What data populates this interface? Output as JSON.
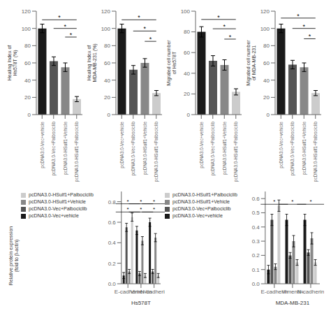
{
  "chart_data": [
    {
      "type": "bar",
      "categories": [
        "pcDNA3.0-Vec+vehicle",
        "pcDNA3.0-Vec+Palbociclib",
        "pcDNA3.0-HSulf1+Vehicle",
        "pcDNA3.0-HSulf1+Palbociclib"
      ],
      "values": [
        100,
        62,
        55,
        18
      ],
      "errors": [
        5,
        5,
        5,
        3
      ],
      "colors": [
        "#1a1a1a",
        "#555555",
        "#888888",
        "#cccccc"
      ],
      "ylabel": "Healing Index of\nHs578T (%)",
      "ylim": [
        0,
        120
      ],
      "yticks": [
        0,
        20,
        40,
        60,
        80,
        100,
        120
      ],
      "grid": false,
      "annotations": [
        {
          "text": "*",
          "from": "pcDNA3.0-Vec+vehicle",
          "to": "pcDNA3.0-HSulf1+Palbociclib",
          "y": 110
        },
        {
          "text": "*",
          "from": "pcDNA3.0-Vec+Palbociclib",
          "to": "pcDNA3.0-HSulf1+Palbociclib",
          "y": 100
        },
        {
          "text": "*",
          "from": "pcDNA3.0-HSulf1+Vehicle",
          "to": "pcDNA3.0-HSulf1+Palbociclib",
          "y": 90
        }
      ]
    },
    {
      "type": "bar",
      "categories": [
        "pcDNA3.0-Vec+vehicle",
        "pcDNA3.0-Vec+Palbociclib",
        "pcDNA3.0-HSulf1+Vehicle",
        "pcDNA3.0-HSulf1+Palbociclib"
      ],
      "values": [
        100,
        52,
        60,
        25
      ],
      "errors": [
        5,
        5,
        5,
        3
      ],
      "colors": [
        "#1a1a1a",
        "#555555",
        "#888888",
        "#cccccc"
      ],
      "ylabel": "Healing Index of\nMDA-MB-231 (%)",
      "ylim": [
        0,
        120
      ],
      "yticks": [
        0,
        20,
        40,
        60,
        80,
        100,
        120
      ],
      "grid": false,
      "annotations": [
        {
          "text": "*",
          "from": "pcDNA3.0-Vec+vehicle",
          "to": "pcDNA3.0-HSulf1+Palbociclib",
          "y": 110
        },
        {
          "text": "*",
          "from": "pcDNA3.0-Vec+Palbociclib",
          "to": "pcDNA3.0-HSulf1+Palbociclib",
          "y": 97
        },
        {
          "text": "*",
          "from": "pcDNA3.0-HSulf1+Vehicle",
          "to": "pcDNA3.0-HSulf1+Palbociclib",
          "y": 85
        }
      ]
    },
    {
      "type": "bar",
      "categories": [
        "pcDNA3.0-Vec+vehicle",
        "pcDNA3.0-Vec+Palbociclib",
        "pcDNA3.0-HSulf1+Vehicle",
        "pcDNA3.0-HSulf1+Palbociclib"
      ],
      "values": [
        80,
        52,
        48,
        22
      ],
      "errors": [
        5,
        5,
        5,
        3
      ],
      "colors": [
        "#1a1a1a",
        "#555555",
        "#888888",
        "#cccccc"
      ],
      "ylabel": "Migrated cell number\nof Hs578T",
      "ylim": [
        0,
        100
      ],
      "yticks": [
        0,
        20,
        40,
        60,
        80,
        100
      ],
      "grid": false,
      "annotations": [
        {
          "text": "*",
          "from": "pcDNA3.0-Vec+vehicle",
          "to": "pcDNA3.0-HSulf1+Palbociclib",
          "y": 92
        },
        {
          "text": "*",
          "from": "pcDNA3.0-Vec+Palbociclib",
          "to": "pcDNA3.0-HSulf1+Palbociclib",
          "y": 83
        },
        {
          "text": "*",
          "from": "pcDNA3.0-HSulf1+Vehicle",
          "to": "pcDNA3.0-HSulf1+Palbociclib",
          "y": 73
        }
      ]
    },
    {
      "type": "bar",
      "categories": [
        "pcDNA3.0-Vec+vehicle",
        "pcDNA3.0-Vec+Palbociclib",
        "pcDNA3.0-HSulf1+Vehicle",
        "pcDNA3.0-HSulf1+Palbociclib"
      ],
      "values": [
        100,
        58,
        55,
        25
      ],
      "errors": [
        5,
        5,
        5,
        3
      ],
      "colors": [
        "#1a1a1a",
        "#555555",
        "#888888",
        "#cccccc"
      ],
      "ylabel": "Migrated cell number\nof MDA-MB-231",
      "ylim": [
        0,
        120
      ],
      "yticks": [
        0,
        20,
        40,
        60,
        80,
        100,
        120
      ],
      "grid": false,
      "annotations": [
        {
          "text": "*",
          "from": "pcDNA3.0-Vec+vehicle",
          "to": "pcDNA3.0-HSulf1+Palbociclib",
          "y": 112
        },
        {
          "text": "*",
          "from": "pcDNA3.0-Vec+Palbociclib",
          "to": "pcDNA3.0-HSulf1+Palbociclib",
          "y": 100
        },
        {
          "text": "*",
          "from": "pcDNA3.0-HSulf1+Vehicle",
          "to": "pcDNA3.0-HSulf1+Palbociclib",
          "y": 88
        }
      ]
    },
    {
      "type": "bar",
      "categories": [
        "E-cadherin",
        "Vimentin",
        "N-cadherin"
      ],
      "series": [
        {
          "name": "pcDNA3.0-Vec+vehicle",
          "color": "#1a1a1a",
          "values": [
            0.08,
            0.52,
            0.6
          ],
          "errors": [
            0.03,
            0.04,
            0.04
          ]
        },
        {
          "name": "pcDNA3.0-Vec+Palbociclib",
          "color": "#555555",
          "values": [
            0.55,
            0.1,
            0.12
          ],
          "errors": [
            0.04,
            0.02,
            0.02
          ]
        },
        {
          "name": "pcDNA3.0-HSulf1+Vehicle",
          "color": "#888888",
          "values": [
            0.12,
            0.42,
            0.45
          ],
          "errors": [
            0.02,
            0.04,
            0.04
          ]
        },
        {
          "name": "pcDNA3.0-HSulf1+Palbociclib",
          "color": "#cccccc",
          "values": [
            0.65,
            0.08,
            0.08
          ],
          "errors": [
            0.04,
            0.02,
            0.02
          ]
        }
      ],
      "ylabel": "Relative protein expression\n(fold to β-actin)",
      "xlabel": "Hs578T",
      "ylim": [
        0,
        0.9
      ],
      "yticks": [
        {
          "value": 0,
          "label": "0.0"
        },
        0.2,
        0.4,
        0.6,
        0.8
      ],
      "grid": false,
      "legend": "upper left",
      "annotations": [
        {
          "text": "*",
          "category": "E-cadherin",
          "y": 0.78
        },
        {
          "text": "*",
          "category": "E-cadherin",
          "y": 0.7
        },
        {
          "text": "*",
          "category": "Vimentin",
          "y": 0.78
        },
        {
          "text": "*",
          "category": "Vimentin",
          "y": 0.7
        },
        {
          "text": "*",
          "category": "N-cadherin",
          "y": 0.78
        },
        {
          "text": "*",
          "category": "N-cadherin",
          "y": 0.7
        }
      ]
    },
    {
      "type": "bar",
      "categories": [
        "E-cadherin",
        "Vimentin",
        "N-cadherin"
      ],
      "series": [
        {
          "name": "pcDNA3.0-Vec+vehicle",
          "color": "#1a1a1a",
          "values": [
            0.1,
            0.45,
            0.45
          ],
          "errors": [
            0.03,
            0.04,
            0.04
          ]
        },
        {
          "name": "pcDNA3.0-Vec+Palbociclib",
          "color": "#555555",
          "values": [
            0.45,
            0.2,
            0.22
          ],
          "errors": [
            0.04,
            0.02,
            0.02
          ]
        },
        {
          "name": "pcDNA3.0-HSulf1+Vehicle",
          "color": "#888888",
          "values": [
            0.12,
            0.3,
            0.32
          ],
          "errors": [
            0.02,
            0.04,
            0.04
          ]
        },
        {
          "name": "pcDNA3.0-HSulf1+Palbociclib",
          "color": "#cccccc",
          "values": [
            0.55,
            0.15,
            0.15
          ],
          "errors": [
            0.04,
            0.02,
            0.02
          ]
        }
      ],
      "xlabel": "MDA-MB-231",
      "ylim": [
        0,
        0.65
      ],
      "yticks": [
        {
          "value": 0,
          "label": "0.0"
        },
        0.1,
        0.2,
        0.3,
        0.4,
        0.5,
        0.6
      ],
      "grid": false,
      "legend": "upper left",
      "annotations": [
        {
          "text": "*",
          "category": "E-cadherin",
          "y": 0.56
        },
        {
          "text": "*",
          "category": "Vimentin",
          "y": 0.56
        },
        {
          "text": "*",
          "category": "N-cadherin",
          "y": 0.56
        }
      ]
    }
  ]
}
